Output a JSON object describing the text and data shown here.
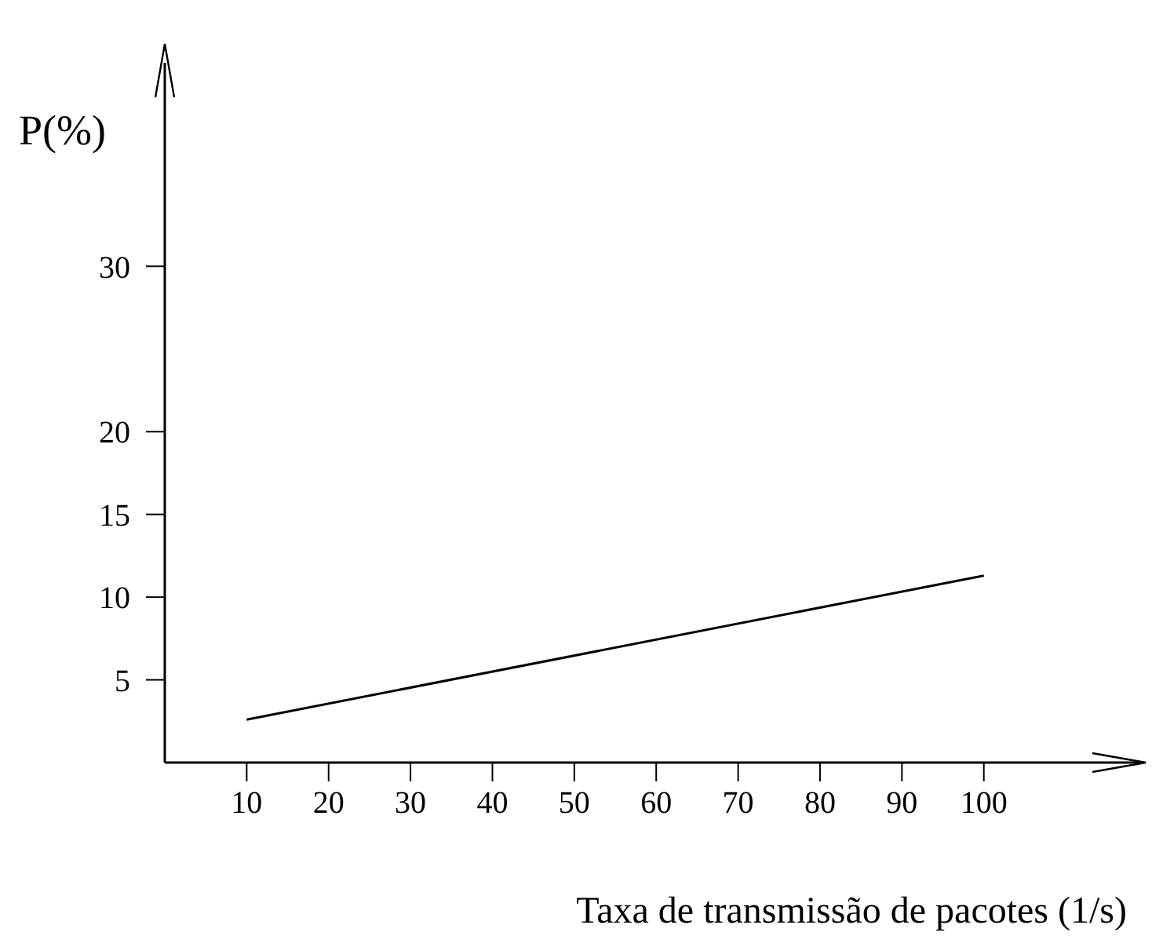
{
  "chart_data": {
    "type": "line",
    "xlabel": "Taxa de transmissão de pacotes (1/s)",
    "ylabel": "P(%)",
    "x": [
      10,
      100
    ],
    "series": [
      {
        "color": "#000000",
        "values": [
          2.6,
          11.3
        ]
      }
    ],
    "xlim": [
      0,
      119
    ],
    "xticks": [
      10,
      20,
      30,
      40,
      50,
      60,
      70,
      80,
      90,
      100
    ],
    "ylim": [
      0,
      42.3
    ],
    "yticks": [
      5,
      10,
      15,
      20,
      30
    ],
    "grid": false,
    "marker": "none",
    "line_style": "solid"
  }
}
